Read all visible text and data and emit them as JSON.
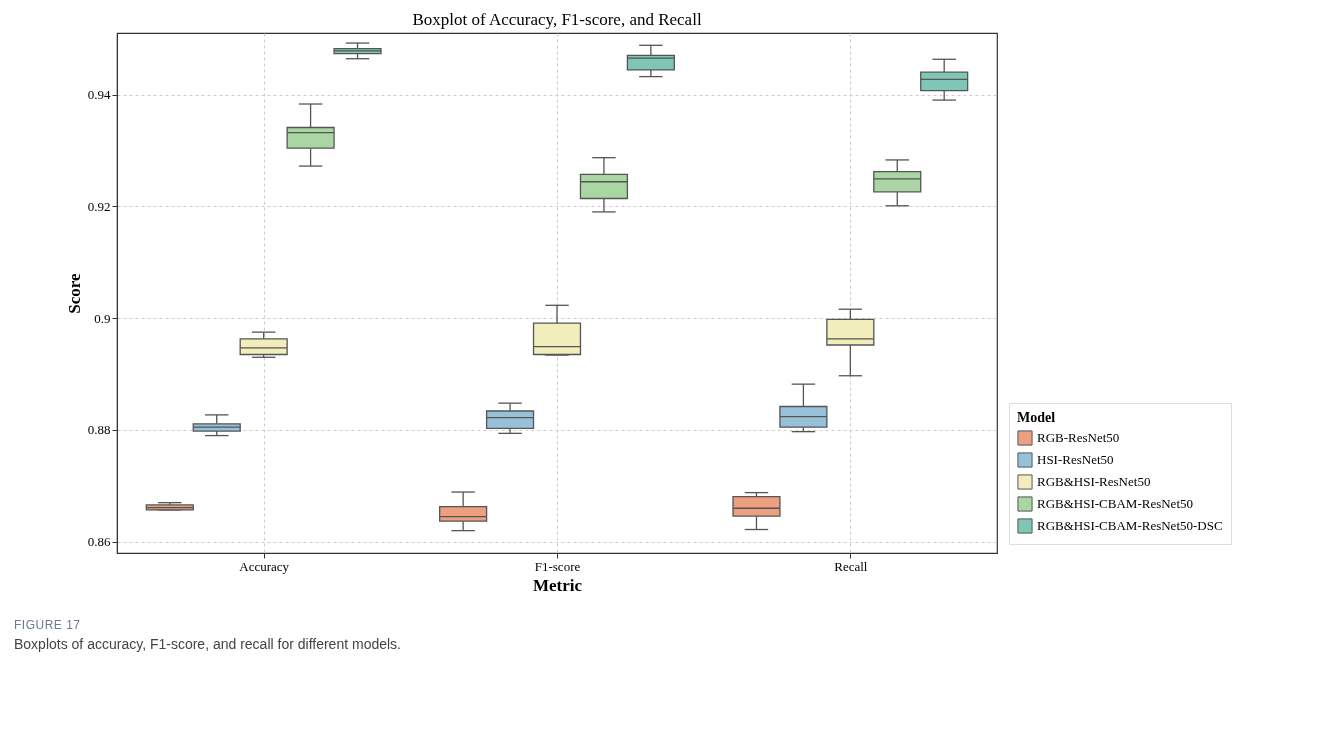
{
  "chart_data": {
    "type": "box",
    "title": "Boxplot of Accuracy, F1-score, and Recall",
    "xlabel": "Metric",
    "ylabel": "Score",
    "legend_title": "Model",
    "categories": [
      "Accuracy",
      "F1-score",
      "Recall"
    ],
    "ylim": [
      0.858,
      0.951
    ],
    "yticks": [
      0.86,
      0.88,
      0.9,
      0.92,
      0.94
    ],
    "grid": true,
    "legend": "bottom right",
    "series": [
      {
        "name": "RGB-ResNet50",
        "color": "#eda07f",
        "boxes": [
          {
            "low": 0.8657,
            "q1": 0.8657,
            "median": 0.8661,
            "q3": 0.8666,
            "high": 0.867
          },
          {
            "low": 0.862,
            "q1": 0.8637,
            "median": 0.8645,
            "q3": 0.8663,
            "high": 0.8689
          },
          {
            "low": 0.8622,
            "q1": 0.8646,
            "median": 0.866,
            "q3": 0.8681,
            "high": 0.8688
          }
        ]
      },
      {
        "name": "HSI-ResNet50",
        "color": "#97c0d9",
        "boxes": [
          {
            "low": 0.879,
            "q1": 0.8798,
            "median": 0.8805,
            "q3": 0.8811,
            "high": 0.8827
          },
          {
            "low": 0.8794,
            "q1": 0.8803,
            "median": 0.8822,
            "q3": 0.8834,
            "high": 0.8848
          },
          {
            "low": 0.8797,
            "q1": 0.8805,
            "median": 0.8824,
            "q3": 0.8842,
            "high": 0.8882
          }
        ]
      },
      {
        "name": "RGB&HSI-ResNet50",
        "color": "#f1eebc",
        "boxes": [
          {
            "low": 0.893,
            "q1": 0.8935,
            "median": 0.8947,
            "q3": 0.8963,
            "high": 0.8975
          },
          {
            "low": 0.8934,
            "q1": 0.8935,
            "median": 0.8949,
            "q3": 0.8991,
            "high": 0.9023
          },
          {
            "low": 0.8897,
            "q1": 0.8952,
            "median": 0.8963,
            "q3": 0.8998,
            "high": 0.9016
          }
        ]
      },
      {
        "name": "RGB&HSI-CBAM-ResNet50",
        "color": "#a9d6a2",
        "boxes": [
          {
            "low": 0.9272,
            "q1": 0.9304,
            "median": 0.9332,
            "q3": 0.9341,
            "high": 0.9383
          },
          {
            "low": 0.919,
            "q1": 0.9214,
            "median": 0.9244,
            "q3": 0.9257,
            "high": 0.9287
          },
          {
            "low": 0.9201,
            "q1": 0.9226,
            "median": 0.9249,
            "q3": 0.9262,
            "high": 0.9283
          }
        ]
      },
      {
        "name": "RGB&HSI-CBAM-ResNet50-DSC",
        "color": "#7fc6b7",
        "boxes": [
          {
            "low": 0.9464,
            "q1": 0.9473,
            "median": 0.9478,
            "q3": 0.9482,
            "high": 0.9492
          },
          {
            "low": 0.9432,
            "q1": 0.9444,
            "median": 0.9465,
            "q3": 0.947,
            "high": 0.9488
          },
          {
            "low": 0.939,
            "q1": 0.9407,
            "median": 0.9427,
            "q3": 0.944,
            "high": 0.9463
          }
        ]
      }
    ],
    "annotations": [
      "FIGURE 17",
      "Boxplots of accuracy, F1-score, and recall for different models."
    ]
  }
}
